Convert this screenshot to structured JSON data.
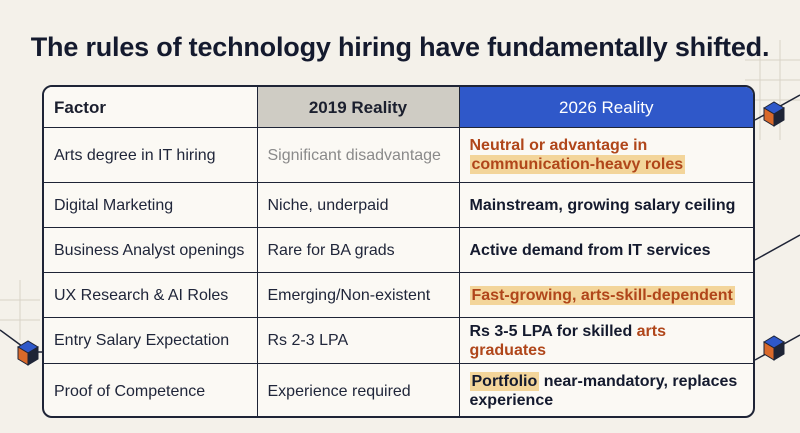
{
  "title": "The rules of technology hiring have fundamentally shifted.",
  "table": {
    "headers": [
      "Factor",
      "2019 Reality",
      "2026 Reality"
    ],
    "rows": [
      {
        "factor": "Arts degree in IT hiring",
        "r2019": "Significant disadvantage",
        "r2026_a": "Neutral or advantage in",
        "r2026_b": "communication-heavy roles"
      },
      {
        "factor": "Digital Marketing",
        "r2019": "Niche, underpaid",
        "r2026": "Mainstream, growing salary ceiling"
      },
      {
        "factor": "Business Analyst openings",
        "r2019": "Rare for BA grads",
        "r2026": "Active demand from IT services"
      },
      {
        "factor": "UX Research & AI Roles",
        "r2019": "Emerging/Non-existent",
        "r2026": "Fast-growing, arts-skill-dependent"
      },
      {
        "factor": "Entry Salary Expectation",
        "r2019": "Rs 2-3 LPA",
        "r2026_a": "Rs 3-5 LPA for skilled ",
        "r2026_b": "arts graduates"
      },
      {
        "factor": "Proof of Competence",
        "r2019": "Experience required",
        "r2026_a": "Portfolio",
        "r2026_b": " near-mandatory, replaces experience"
      }
    ]
  },
  "colors": {
    "background": "#f4f1ea",
    "header_2019": "#cfccc4",
    "header_2026": "#2f58c9",
    "highlight": "#f3d59a",
    "accent_orange": "#b0461a",
    "cube_orange": "#d9692a",
    "cube_blue": "#2f58c9"
  }
}
